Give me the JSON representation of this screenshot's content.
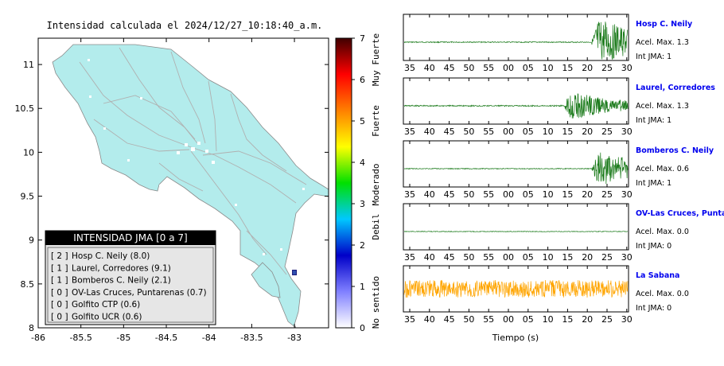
{
  "chart_data": [
    {
      "type": "map",
      "title": "Intensidad calculada el 2024/12/27_10:18:40_a.m.",
      "xlim": [
        -86,
        -82.6
      ],
      "ylim": [
        8,
        11.3
      ],
      "x_ticks": [
        -86,
        -85.5,
        -85,
        -84.5,
        -84,
        -83.5,
        -83
      ],
      "x_tick_labels": [
        "-86",
        "-85.5",
        "-85",
        "-84.5",
        "-84",
        "-83.5",
        "-83"
      ],
      "y_ticks": [
        8,
        8.5,
        9,
        9.5,
        10,
        10.5,
        11
      ],
      "y_tick_labels": [
        "8",
        "8.5",
        "9",
        "9.5",
        "10",
        "10.5",
        "11"
      ],
      "land_color": "#b3ecec",
      "station_marker": {
        "lon": -83.0,
        "lat": 8.63,
        "color": "#1a1a7a"
      },
      "legend": {
        "title": "INTENSIDAD JMA [0 a 7]",
        "entries": [
          {
            "jma": "[ 2 ]",
            "label": "Hosp C. Neily (8.0)"
          },
          {
            "jma": "[ 1 ]",
            "label": "Laurel, Corredores (9.1)"
          },
          {
            "jma": "[ 1 ]",
            "label": "Bomberos C. Neily (2.1)"
          },
          {
            "jma": "[ 0 ]",
            "label": "OV-Las Cruces, Puntarenas (0.7)"
          },
          {
            "jma": "[ 0 ]",
            "label": "Golfito CTP (0.6)"
          },
          {
            "jma": "[ 0 ]",
            "label": "Golfito UCR (0.6)"
          }
        ]
      }
    },
    {
      "type": "colorbar",
      "range": [
        0,
        7
      ],
      "ticks": [
        "0",
        "1",
        "2",
        "3",
        "4",
        "5",
        "6",
        "7"
      ],
      "categories": [
        "No sentido",
        "Debil",
        "Moderado",
        "Fuerte",
        "Muy Fuerte"
      ],
      "stops": [
        "#ffffff",
        "#8080ff",
        "#0000c8",
        "#00c8ff",
        "#00e000",
        "#ffff00",
        "#ff8000",
        "#ff0000",
        "#400000"
      ]
    },
    {
      "type": "line",
      "xlabel": "Tiempo (s)",
      "x_tick_labels": [
        "35",
        "40",
        "45",
        "50",
        "55",
        "00",
        "05",
        "10",
        "15",
        "20",
        "25",
        "30"
      ],
      "panels": [
        {
          "name": "Hosp C. Neily",
          "acel": "Acel. Max. 1.3",
          "int": "Int JMA: 1",
          "color": "#1a7a1a",
          "onset": 23,
          "amp": 26,
          "noise": 0.6
        },
        {
          "name": "Laurel, Corredores",
          "acel": "Acel. Max. 1.3",
          "int": "Int JMA: 1",
          "color": "#1a7a1a",
          "onset": 19.5,
          "amp": 15,
          "noise": 0.8
        },
        {
          "name": "Bomberos C. Neily",
          "acel": "Acel. Max. 0.6",
          "int": "Int JMA: 1",
          "color": "#1a7a1a",
          "onset": 23,
          "amp": 20,
          "noise": 0.5
        },
        {
          "name": "OV-Las Cruces, Puntar",
          "acel": "Acel. Max. 0.0",
          "int": "Int JMA: 0",
          "color": "#1a7a1a",
          "onset": 28,
          "amp": 22,
          "noise": 0.4
        },
        {
          "name": "La Sabana",
          "acel": "Acel. Max. 0.0",
          "int": "Int JMA: 0",
          "color": "#ffa500",
          "onset": 0,
          "amp": 11,
          "noise": 11
        }
      ]
    }
  ]
}
